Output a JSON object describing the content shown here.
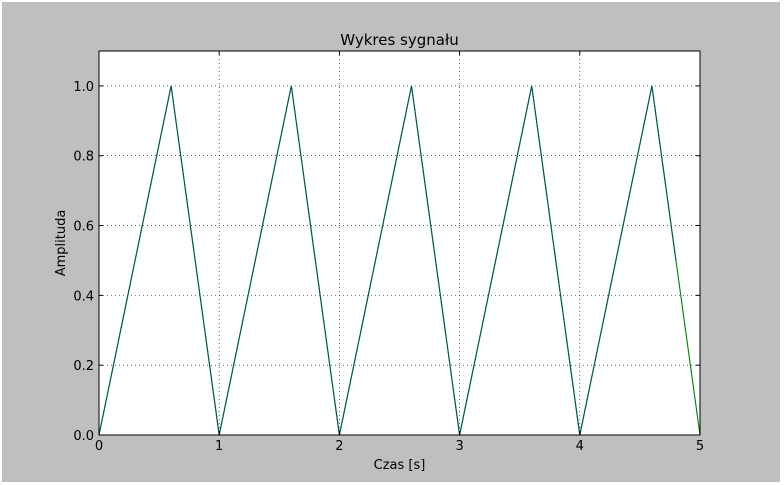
{
  "chart_data": {
    "type": "line",
    "title": "Wykres sygnału",
    "xlabel": "Czas [s]",
    "ylabel": "Amplituda",
    "xlim": [
      0,
      5
    ],
    "ylim": [
      0,
      1.1
    ],
    "xticks": [
      "0",
      "1",
      "2",
      "3",
      "4",
      "5"
    ],
    "yticks": [
      "0.0",
      "0.2",
      "0.4",
      "0.6",
      "0.8",
      "1.0"
    ],
    "grid": true,
    "series": [
      {
        "color": "#008000",
        "x": [
          0,
          0.6,
          1.0,
          1.6,
          2.0,
          2.6,
          3.0,
          3.6,
          4.0,
          4.6,
          5.0
        ],
        "y": [
          0,
          1.0,
          0,
          1.0,
          0,
          1.0,
          0,
          1.0,
          0,
          1.0,
          0
        ]
      },
      {
        "color": "#005a5a",
        "x": [
          0,
          0.6,
          1.0,
          1.6,
          2.0,
          2.6,
          3.0,
          3.6,
          4.0,
          4.6,
          4.8
        ],
        "y": [
          0,
          1.0,
          0,
          1.0,
          0,
          1.0,
          0,
          1.0,
          0,
          1.0,
          0.5
        ]
      }
    ]
  }
}
